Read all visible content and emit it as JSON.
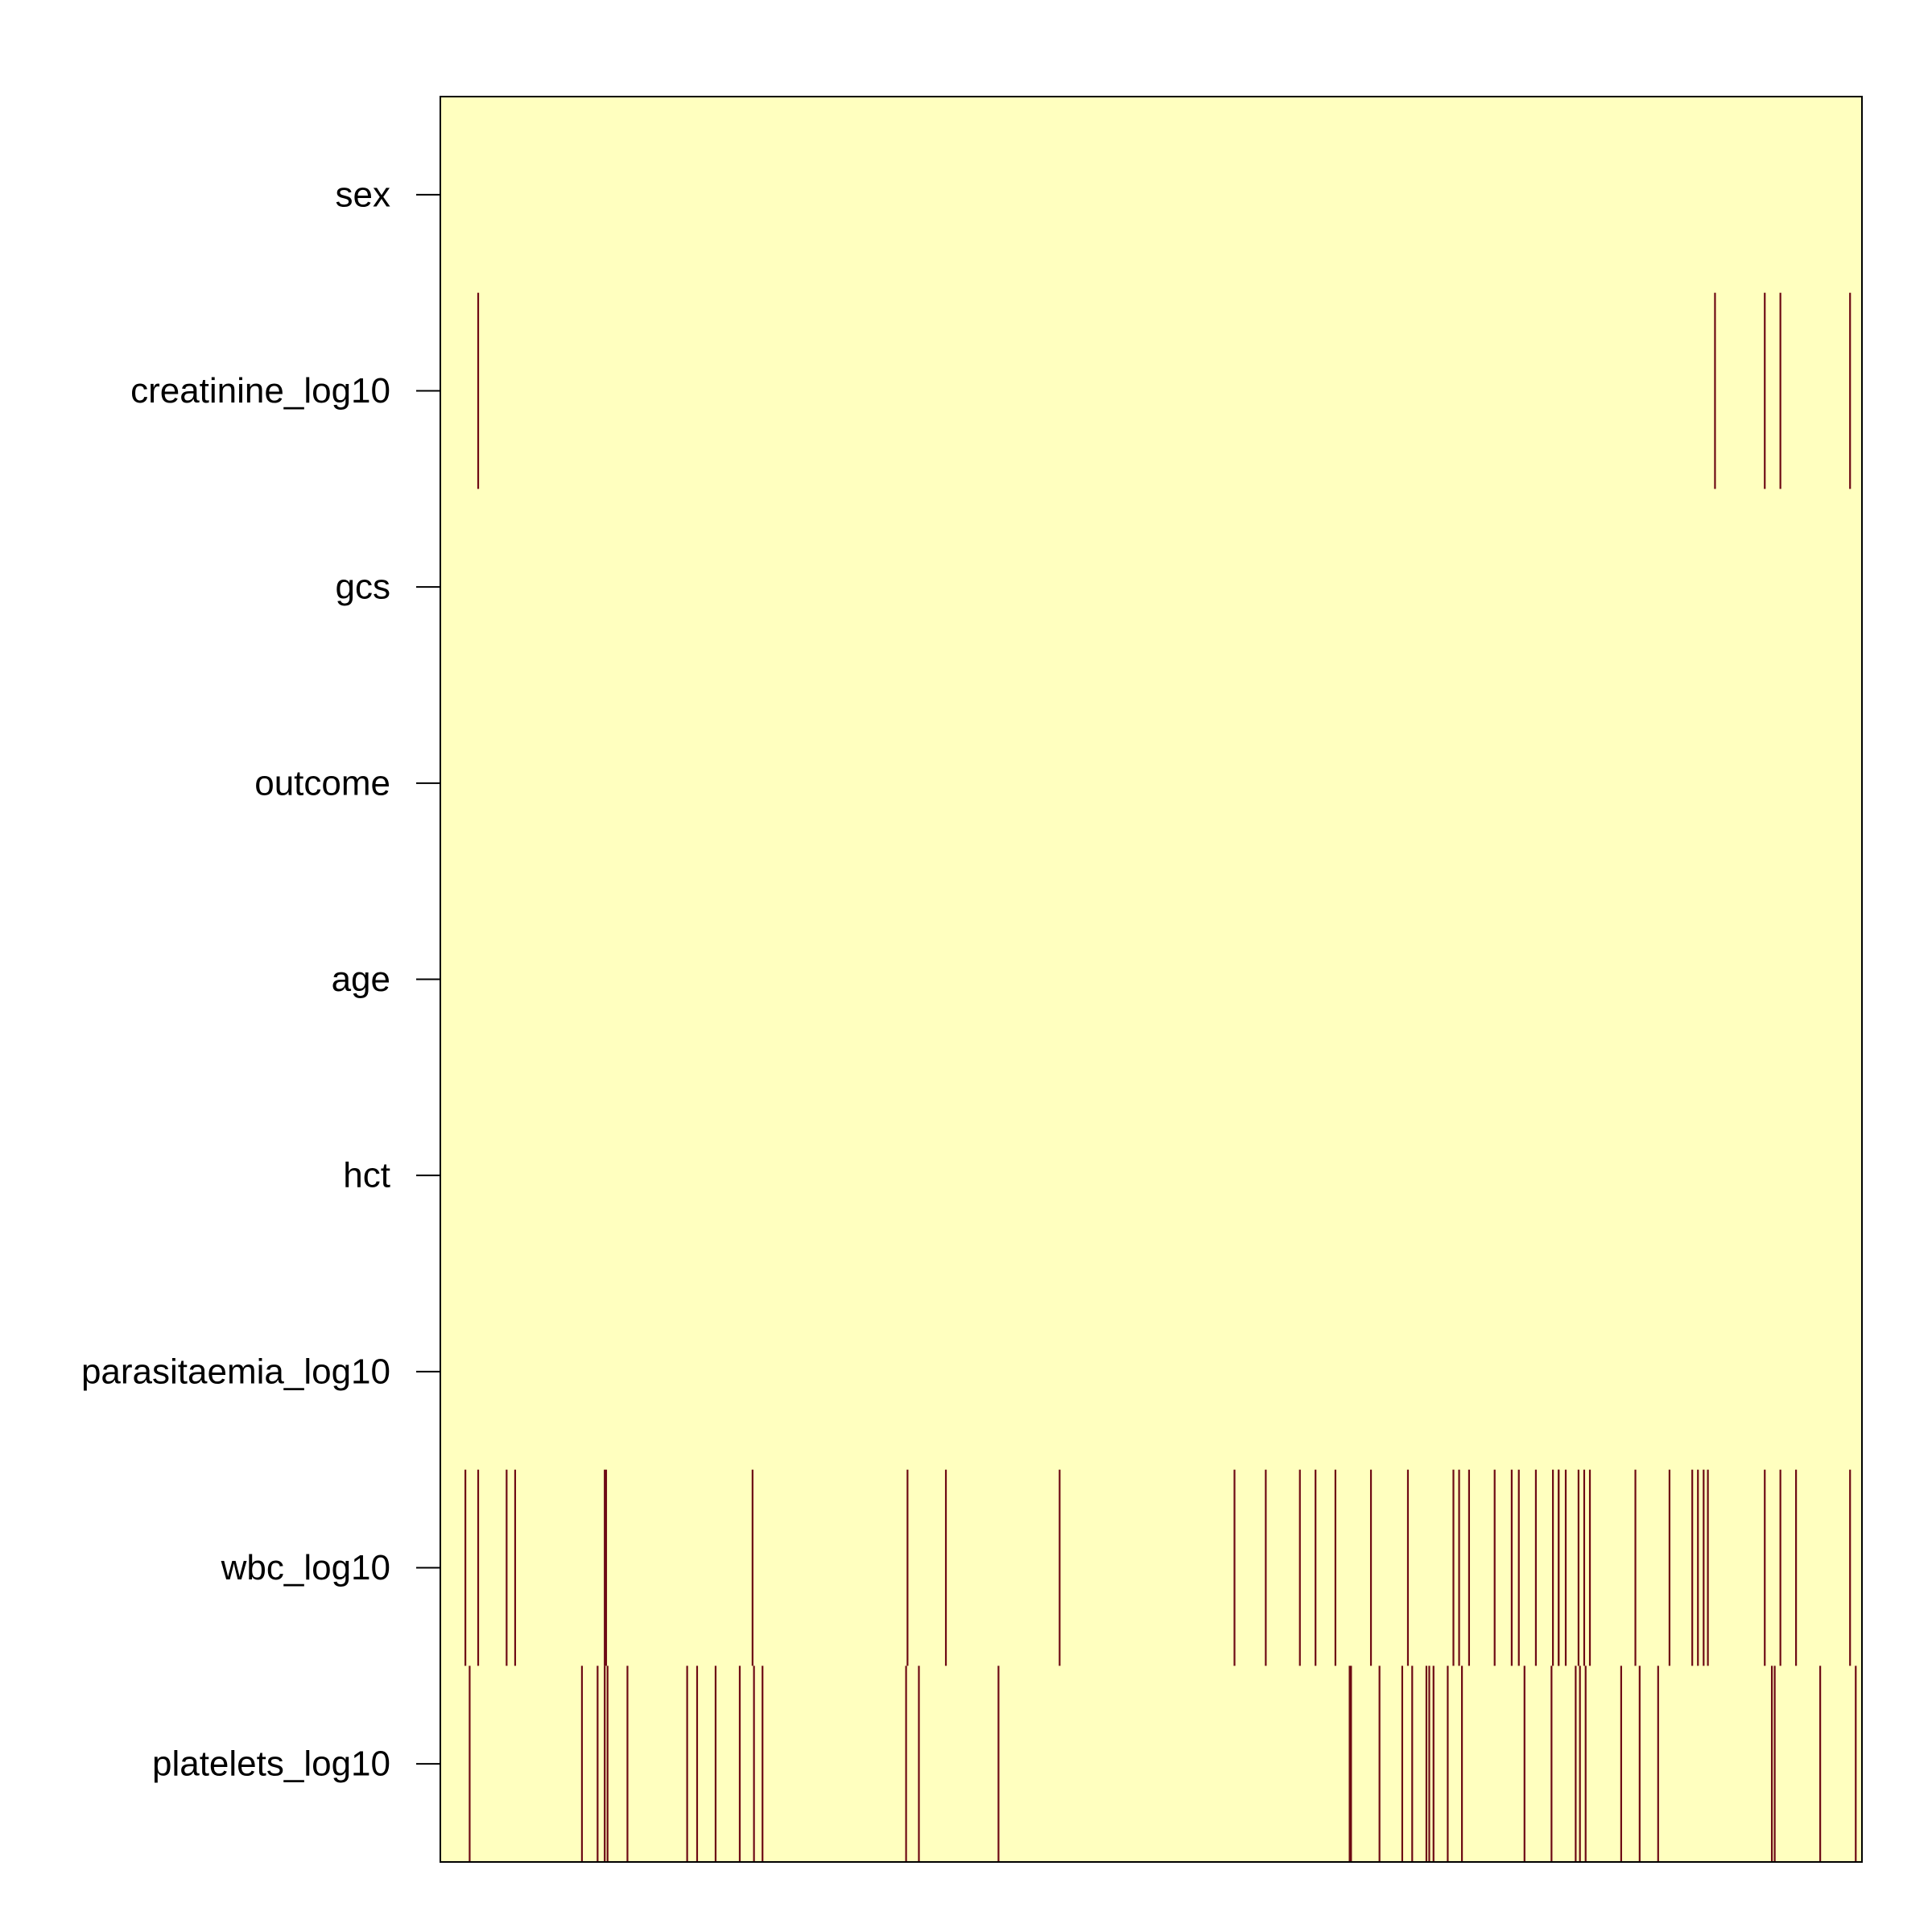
{
  "chart_data": {
    "type": "heatmap",
    "title": "",
    "xlabel": "",
    "ylabel": "",
    "rows": [
      "sex",
      "creatinine_log10",
      "gcs",
      "outcome",
      "age",
      "hct",
      "parasitaemia_log10",
      "wbc_log10",
      "platelets_log10"
    ],
    "n_columns": 1000,
    "missing_columns": {
      "sex": [],
      "creatinine_log10": [
        26,
        896,
        931,
        942,
        991
      ],
      "gcs": [],
      "outcome": [],
      "age": [],
      "hct": [],
      "parasitaemia_log10": [],
      "wbc_log10": [
        17,
        26,
        46,
        52,
        115,
        116,
        219,
        328,
        355,
        435,
        558,
        580,
        604,
        615,
        629,
        654,
        680,
        712,
        716,
        723,
        741,
        753,
        758,
        770,
        786,
        791,
        782,
        786,
        800,
        804,
        808,
        840,
        864,
        880,
        884,
        888,
        891,
        931,
        942,
        953,
        991
      ],
      "platelets_log10": [
        20,
        99,
        110,
        115,
        117,
        131,
        173,
        180,
        193,
        210,
        220,
        226,
        327,
        336,
        392,
        639,
        640,
        660,
        676,
        683,
        693,
        695,
        698,
        708,
        718,
        762,
        781,
        798,
        801,
        805,
        830,
        843,
        856,
        936,
        938,
        970,
        995
      ]
    },
    "colors": {
      "present": "#FFFFBF",
      "missing": "#6E0A14",
      "tick": "#000000"
    },
    "grid": false,
    "legend": "none"
  }
}
